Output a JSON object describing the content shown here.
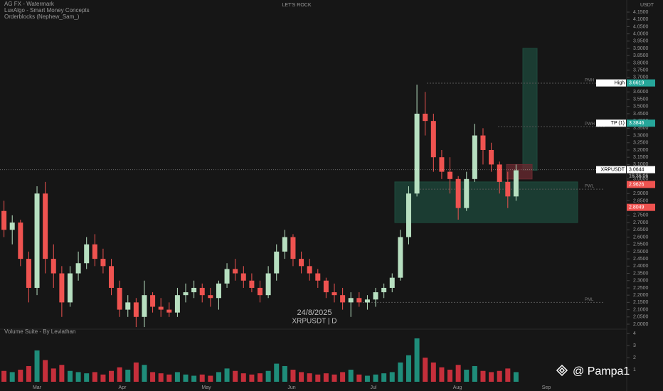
{
  "chart_data": {
    "type": "candlestick",
    "title": "LET'S ROCK",
    "indicators": [
      "AG FX - Watermark",
      "LuxAlgo - Smart Money Concepts",
      "Orderblocks (Nephew_Sam_)"
    ],
    "watermark_date": "24/8/2025",
    "watermark_symbol": "XRPUSDT | D",
    "volume_title": "Volume Suite - By Leviathan",
    "currency": "USDT",
    "author": "@ Pampa1",
    "months": [
      "Mar",
      "Apr",
      "May",
      "Jun",
      "Jul",
      "Aug",
      "Sep"
    ],
    "up_color": "#b7dfc0",
    "down_color": "#ef5350",
    "open": [
      2.78,
      2.65,
      2.7,
      2.45,
      2.25,
      2.9,
      2.45,
      2.35,
      2.15,
      2.35,
      2.42,
      2.55,
      2.45,
      2.4,
      2.25,
      2.1,
      2.15,
      2.05,
      2.2,
      2.12,
      2.1,
      2.08,
      2.2,
      2.22,
      2.25,
      2.2,
      2.18,
      2.28,
      2.38,
      2.35,
      2.3,
      2.25,
      2.2,
      2.35,
      2.5,
      2.6,
      2.45,
      2.4,
      2.35,
      2.3,
      2.22,
      2.2,
      2.15,
      2.18,
      2.15,
      2.17,
      2.22,
      2.25,
      2.32,
      2.6,
      2.9,
      3.45,
      3.4,
      3.15,
      3.05,
      3.0,
      2.8,
      3.0,
      3.3,
      3.2,
      3.1,
      2.98,
      2.88
    ],
    "high": [
      2.85,
      2.75,
      2.72,
      2.5,
      2.95,
      2.98,
      2.55,
      2.4,
      2.4,
      2.5,
      2.6,
      2.62,
      2.52,
      2.45,
      2.3,
      2.2,
      2.18,
      2.3,
      2.22,
      2.18,
      2.15,
      2.25,
      2.28,
      2.3,
      2.28,
      2.25,
      2.3,
      2.42,
      2.45,
      2.4,
      2.35,
      2.3,
      2.4,
      2.55,
      2.65,
      2.62,
      2.5,
      2.45,
      2.38,
      2.32,
      2.28,
      2.25,
      2.22,
      2.22,
      2.2,
      2.25,
      2.28,
      2.35,
      2.65,
      2.95,
      3.65,
      3.6,
      3.45,
      3.2,
      3.15,
      3.02,
      3.05,
      3.38,
      3.35,
      3.25,
      3.12,
      3.05,
      3.1
    ],
    "low": [
      2.6,
      2.55,
      2.4,
      2.15,
      2.2,
      2.35,
      2.25,
      2.05,
      2.12,
      2.3,
      2.38,
      2.4,
      2.35,
      2.2,
      2.05,
      2.05,
      1.98,
      1.98,
      2.08,
      2.05,
      2.05,
      2.05,
      2.15,
      2.18,
      2.15,
      2.12,
      2.1,
      2.25,
      2.3,
      2.25,
      2.22,
      2.15,
      2.18,
      2.3,
      2.45,
      2.4,
      2.35,
      2.3,
      2.25,
      2.18,
      2.15,
      2.1,
      2.05,
      2.12,
      2.1,
      2.12,
      2.18,
      2.22,
      2.3,
      2.55,
      2.88,
      3.3,
      3.05,
      3.0,
      2.9,
      2.72,
      2.78,
      2.98,
      3.1,
      3.05,
      2.9,
      2.8,
      2.85
    ],
    "close": [
      2.65,
      2.7,
      2.45,
      2.25,
      2.9,
      2.45,
      2.35,
      2.15,
      2.35,
      2.42,
      2.55,
      2.45,
      2.4,
      2.25,
      2.1,
      2.15,
      2.05,
      2.2,
      2.12,
      2.1,
      2.08,
      2.2,
      2.22,
      2.25,
      2.2,
      2.18,
      2.28,
      2.38,
      2.35,
      2.3,
      2.25,
      2.2,
      2.35,
      2.5,
      2.6,
      2.45,
      2.4,
      2.35,
      2.3,
      2.22,
      2.2,
      2.15,
      2.18,
      2.15,
      2.17,
      2.22,
      2.25,
      2.32,
      2.6,
      2.9,
      3.45,
      3.4,
      3.15,
      3.05,
      3.0,
      2.8,
      3.0,
      3.3,
      3.2,
      3.1,
      2.98,
      2.88,
      3.06
    ],
    "volume": [
      0.9,
      0.8,
      1.0,
      1.3,
      2.6,
      1.8,
      1.1,
      1.4,
      0.9,
      0.8,
      0.7,
      0.8,
      0.6,
      0.9,
      1.2,
      1.0,
      1.6,
      1.4,
      0.8,
      0.7,
      0.6,
      0.8,
      0.6,
      0.5,
      0.6,
      0.5,
      0.8,
      1.1,
      0.9,
      0.7,
      0.6,
      0.7,
      0.9,
      1.5,
      1.3,
      1.0,
      0.8,
      0.7,
      0.6,
      0.7,
      0.6,
      0.8,
      1.0,
      0.6,
      0.5,
      0.6,
      0.7,
      0.8,
      1.6,
      2.2,
      3.6,
      2.0,
      1.6,
      1.2,
      1.0,
      1.4,
      1.0,
      1.3,
      0.9,
      0.8,
      0.9,
      1.1,
      0.8
    ],
    "ylim": [
      2.0,
      4.15
    ],
    "yticks": [
      {
        "value": 2.0,
        "label": "2.0000"
      },
      {
        "value": 2.05,
        "label": "2.0500"
      },
      {
        "value": 2.1,
        "label": "2.1000"
      },
      {
        "value": 2.15,
        "label": "2.1500"
      },
      {
        "value": 2.2,
        "label": "2.2000"
      },
      {
        "value": 2.25,
        "label": "2.2500"
      },
      {
        "value": 2.3,
        "label": "2.3000"
      },
      {
        "value": 2.35,
        "label": "2.3500"
      },
      {
        "value": 2.4,
        "label": "2.4000"
      },
      {
        "value": 2.45,
        "label": "2.4500"
      },
      {
        "value": 2.5,
        "label": "2.5000"
      },
      {
        "value": 2.55,
        "label": "2.5500"
      },
      {
        "value": 2.6,
        "label": "2.6000"
      },
      {
        "value": 2.65,
        "label": "2.6500"
      },
      {
        "value": 2.7,
        "label": "2.7000"
      },
      {
        "value": 2.75,
        "label": "2.7500"
      },
      {
        "value": 2.8,
        "label": "2.8000"
      },
      {
        "value": 2.85,
        "label": "2.8500"
      },
      {
        "value": 2.9,
        "label": "2.9000"
      },
      {
        "value": 2.95,
        "label": "2.9500"
      },
      {
        "value": 3.0,
        "label": "3.0000"
      },
      {
        "value": 3.05,
        "label": "3.0500"
      },
      {
        "value": 3.1,
        "label": "3.1000"
      },
      {
        "value": 3.15,
        "label": "3.1500"
      },
      {
        "value": 3.2,
        "label": "3.2000"
      },
      {
        "value": 3.25,
        "label": "3.2500"
      },
      {
        "value": 3.3,
        "label": "3.3000"
      },
      {
        "value": 3.35,
        "label": "3.3500"
      },
      {
        "value": 3.4,
        "label": "3.4000"
      },
      {
        "value": 3.45,
        "label": "3.4500"
      },
      {
        "value": 3.5,
        "label": "3.5000"
      },
      {
        "value": 3.55,
        "label": "3.5500"
      },
      {
        "value": 3.6,
        "label": "3.6000"
      },
      {
        "value": 3.65,
        "label": "3.6500"
      },
      {
        "value": 3.7,
        "label": "3.7000"
      },
      {
        "value": 3.75,
        "label": "3.7500"
      },
      {
        "value": 3.8,
        "label": "3.8000"
      },
      {
        "value": 3.85,
        "label": "3.8500"
      },
      {
        "value": 3.9,
        "label": "3.9000"
      },
      {
        "value": 3.95,
        "label": "3.9500"
      },
      {
        "value": 4.0,
        "label": "4.0000"
      },
      {
        "value": 4.05,
        "label": "4.0500"
      },
      {
        "value": 4.1,
        "label": "4.1000"
      },
      {
        "value": 4.15,
        "label": "4.1500"
      }
    ],
    "vlim": [
      0,
      4.6
    ],
    "vticks": [
      1,
      2,
      3,
      4
    ],
    "levels": [
      {
        "name": "PMH",
        "value": 3.66
      },
      {
        "name": "PWH",
        "value": 3.36
      },
      {
        "name": "PWL",
        "value": 2.93
      },
      {
        "name": "PML",
        "value": 2.15
      }
    ],
    "tags": [
      {
        "name": "High",
        "value": 3.6619,
        "color": "#26a69a"
      },
      {
        "name": "TP (1)",
        "value": 3.3846,
        "color": "#26a69a"
      },
      {
        "name": "XRPUSDT",
        "value": 3.0644,
        "color": "#ffffff"
      },
      {
        "value": 2.9626,
        "color": "#ef5350"
      },
      {
        "value": 2.8049,
        "color": "#ef5350"
      }
    ],
    "last_time": "16:36:06",
    "zones": [
      {
        "low": 2.7,
        "high": 2.98,
        "color": "#1e4a3c"
      },
      {
        "low": 3.06,
        "high": 3.9,
        "color": "#1e4a3c"
      },
      {
        "low": 3.0,
        "high": 3.1,
        "color": "#6b2a30"
      }
    ]
  }
}
